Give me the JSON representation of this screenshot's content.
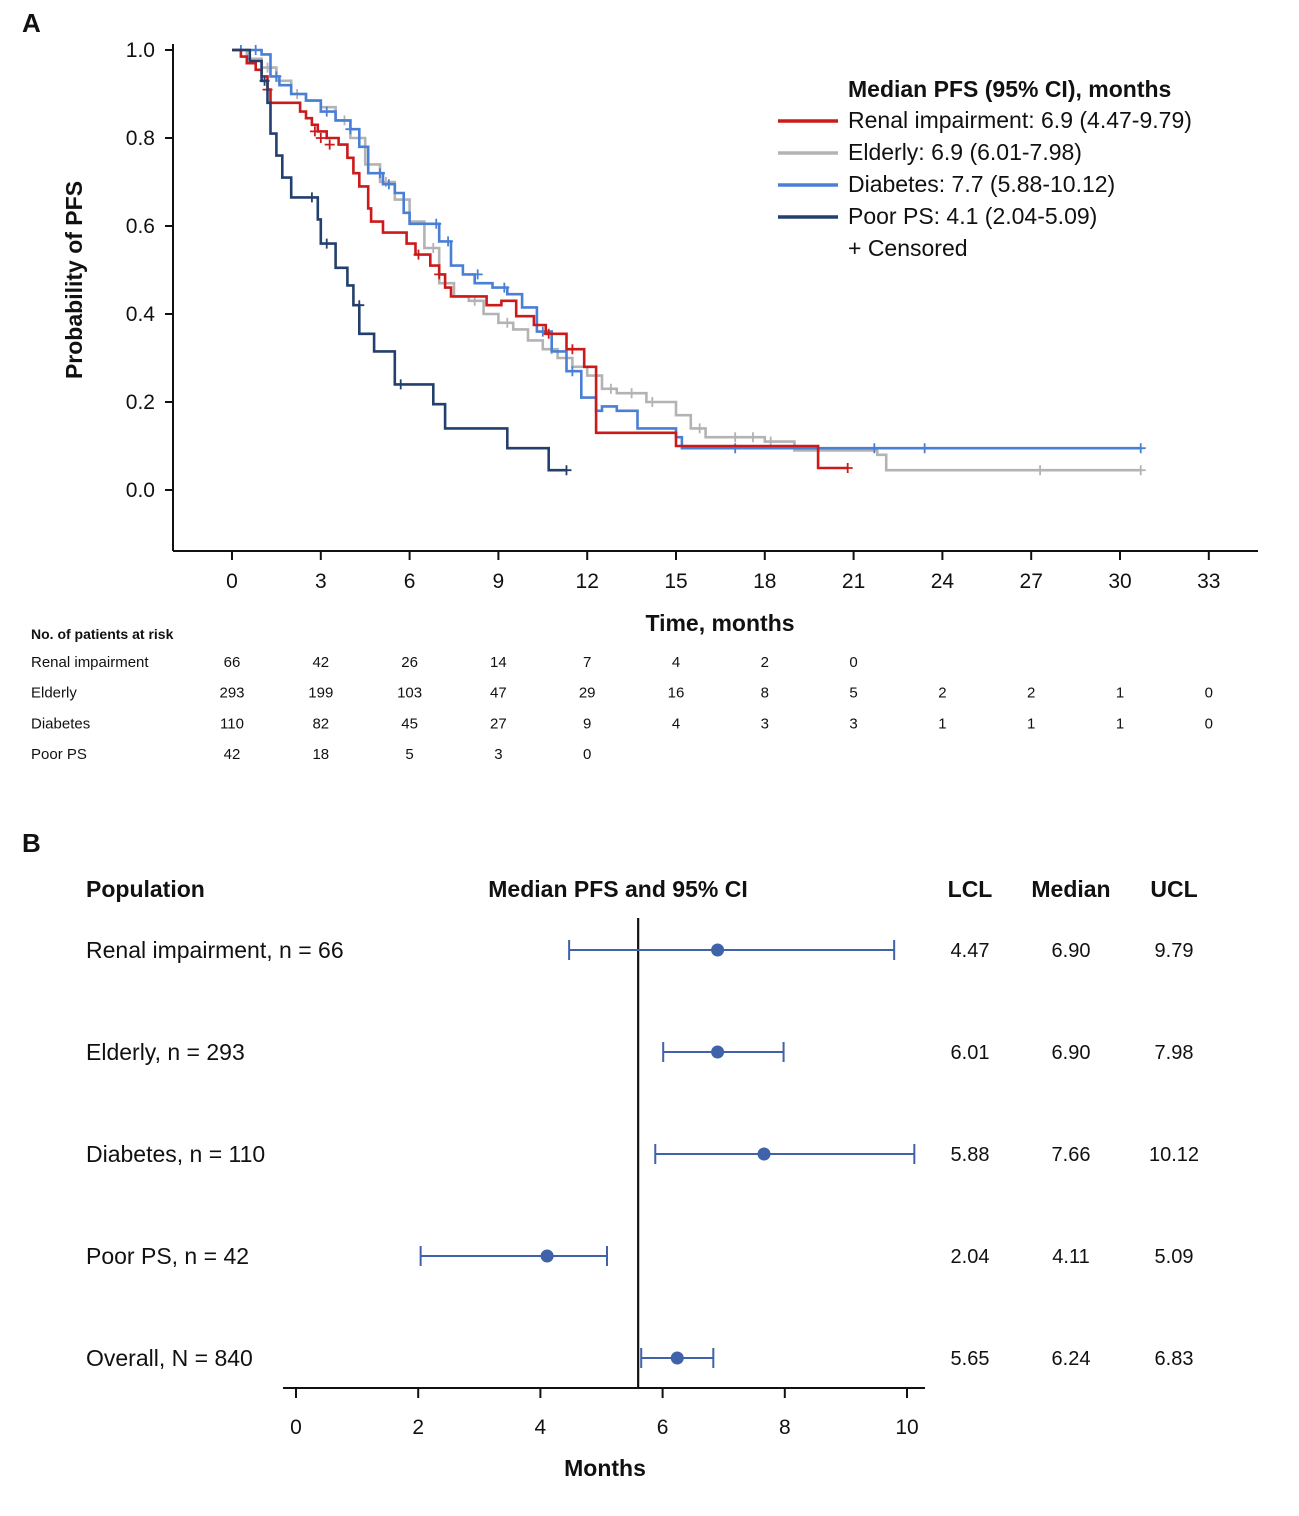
{
  "colors": {
    "renal": "#cc1a1a",
    "elderly": "#b3b3b3",
    "diabetes": "#4a7fd6",
    "poor_ps": "#233f6e",
    "forest": "#3f62a8",
    "axis": "#111111"
  },
  "panel_a": {
    "label": "A",
    "legend": {
      "title": "Median PFS (95% CI), months",
      "entries": [
        {
          "key": "renal",
          "text": "Renal impairment: 6.9 (4.47-9.79)"
        },
        {
          "key": "elderly",
          "text": "Elderly: 6.9 (6.01-7.98)"
        },
        {
          "key": "diabetes",
          "text": "Diabetes: 7.7 (5.88-10.12)"
        },
        {
          "key": "poor_ps",
          "text": "Poor PS: 4.1 (2.04-5.09)"
        }
      ],
      "censored_text": "+ Censored"
    },
    "risk_table": {
      "title": "No. of patients at risk",
      "rows": [
        {
          "label": "Renal impairment",
          "values": [
            "66",
            "42",
            "26",
            "14",
            "7",
            "4",
            "2",
            "0"
          ]
        },
        {
          "label": "Elderly",
          "values": [
            "293",
            "199",
            "103",
            "47",
            "29",
            "16",
            "8",
            "5",
            "2",
            "2",
            "1",
            "0"
          ]
        },
        {
          "label": "Diabetes",
          "values": [
            "110",
            "82",
            "45",
            "27",
            "9",
            "4",
            "3",
            "3",
            "1",
            "1",
            "1",
            "0"
          ]
        },
        {
          "label": "Poor PS",
          "values": [
            "42",
            "18",
            "5",
            "3",
            "0"
          ]
        }
      ]
    }
  },
  "panel_b": {
    "label": "B",
    "headers": {
      "population": "Population",
      "plot": "Median PFS and 95% CI",
      "lcl": "LCL",
      "median": "Median",
      "ucl": "UCL"
    }
  },
  "chart_data": [
    {
      "type": "line",
      "subtype": "kaplan-meier",
      "title": "",
      "xlabel": "Time, months",
      "ylabel": "Probability of PFS",
      "xlim": [
        -2,
        34
      ],
      "ylim": [
        -0.14,
        1.02
      ],
      "xticks": [
        0,
        3,
        6,
        9,
        12,
        15,
        18,
        21,
        24,
        27,
        30,
        33
      ],
      "yticks": [
        0.0,
        0.2,
        0.4,
        0.6,
        0.8,
        1.0
      ],
      "ytick_labels": [
        "0.0",
        "0.2",
        "0.4",
        "0.6",
        "0.8",
        "1.0"
      ],
      "series": [
        {
          "name": "Renal impairment",
          "color_key": "renal",
          "steps": [
            [
              0,
              1.0
            ],
            [
              0.3,
              0.985
            ],
            [
              0.5,
              0.97
            ],
            [
              0.8,
              0.955
            ],
            [
              1.0,
              0.94
            ],
            [
              1.2,
              0.91
            ],
            [
              1.3,
              0.88
            ],
            [
              2.3,
              0.86
            ],
            [
              2.5,
              0.845
            ],
            [
              2.7,
              0.83
            ],
            [
              2.9,
              0.815
            ],
            [
              3.2,
              0.8
            ],
            [
              3.6,
              0.785
            ],
            [
              3.9,
              0.755
            ],
            [
              4.1,
              0.72
            ],
            [
              4.3,
              0.69
            ],
            [
              4.6,
              0.64
            ],
            [
              4.7,
              0.61
            ],
            [
              5.1,
              0.585
            ],
            [
              5.9,
              0.56
            ],
            [
              6.2,
              0.535
            ],
            [
              6.7,
              0.51
            ],
            [
              7.0,
              0.49
            ],
            [
              7.2,
              0.46
            ],
            [
              7.4,
              0.44
            ],
            [
              8.6,
              0.42
            ],
            [
              9.1,
              0.43
            ],
            [
              9.6,
              0.395
            ],
            [
              10.2,
              0.375
            ],
            [
              10.6,
              0.355
            ],
            [
              11.3,
              0.32
            ],
            [
              11.9,
              0.28
            ],
            [
              12.3,
              0.13
            ],
            [
              15.0,
              0.1
            ],
            [
              19.8,
              0.05
            ],
            [
              20.8,
              0.05
            ]
          ],
          "censor": [
            [
              1.2,
              0.91
            ],
            [
              2.8,
              0.815
            ],
            [
              3.0,
              0.8
            ],
            [
              3.3,
              0.785
            ],
            [
              6.3,
              0.535
            ],
            [
              7.0,
              0.49
            ],
            [
              10.7,
              0.355
            ],
            [
              11.5,
              0.32
            ],
            [
              20.8,
              0.05
            ]
          ]
        },
        {
          "name": "Elderly",
          "color_key": "elderly",
          "steps": [
            [
              0,
              1.0
            ],
            [
              0.5,
              0.98
            ],
            [
              1.0,
              0.96
            ],
            [
              1.5,
              0.93
            ],
            [
              2.0,
              0.9
            ],
            [
              2.5,
              0.885
            ],
            [
              3.0,
              0.87
            ],
            [
              3.5,
              0.84
            ],
            [
              4.0,
              0.8
            ],
            [
              4.5,
              0.74
            ],
            [
              5.0,
              0.7
            ],
            [
              5.5,
              0.66
            ],
            [
              6.0,
              0.61
            ],
            [
              6.5,
              0.55
            ],
            [
              7.0,
              0.47
            ],
            [
              7.5,
              0.44
            ],
            [
              8.0,
              0.43
            ],
            [
              8.5,
              0.4
            ],
            [
              9.0,
              0.38
            ],
            [
              9.5,
              0.365
            ],
            [
              10.0,
              0.34
            ],
            [
              10.5,
              0.32
            ],
            [
              11.0,
              0.3
            ],
            [
              11.5,
              0.28
            ],
            [
              12.0,
              0.26
            ],
            [
              12.5,
              0.23
            ],
            [
              13.0,
              0.22
            ],
            [
              14.0,
              0.2
            ],
            [
              15.0,
              0.17
            ],
            [
              15.5,
              0.14
            ],
            [
              16.0,
              0.12
            ],
            [
              18.0,
              0.11
            ],
            [
              19.0,
              0.09
            ],
            [
              21.8,
              0.08
            ],
            [
              22.1,
              0.045
            ],
            [
              30.7,
              0.045
            ]
          ],
          "censor": [
            [
              1.2,
              0.96
            ],
            [
              2.2,
              0.9
            ],
            [
              3.8,
              0.84
            ],
            [
              5.2,
              0.7
            ],
            [
              6.8,
              0.55
            ],
            [
              8.2,
              0.43
            ],
            [
              9.3,
              0.38
            ],
            [
              10.8,
              0.32
            ],
            [
              12.8,
              0.23
            ],
            [
              13.5,
              0.22
            ],
            [
              14.2,
              0.2
            ],
            [
              15.8,
              0.14
            ],
            [
              17.0,
              0.12
            ],
            [
              17.6,
              0.12
            ],
            [
              18.2,
              0.11
            ],
            [
              27.3,
              0.045
            ],
            [
              30.7,
              0.045
            ]
          ]
        },
        {
          "name": "Diabetes",
          "color_key": "diabetes",
          "steps": [
            [
              0,
              1.0
            ],
            [
              1.0,
              0.99
            ],
            [
              1.3,
              0.94
            ],
            [
              1.6,
              0.92
            ],
            [
              2.0,
              0.9
            ],
            [
              2.5,
              0.885
            ],
            [
              3.0,
              0.86
            ],
            [
              3.5,
              0.84
            ],
            [
              4.0,
              0.82
            ],
            [
              4.3,
              0.78
            ],
            [
              4.6,
              0.72
            ],
            [
              5.1,
              0.695
            ],
            [
              5.5,
              0.675
            ],
            [
              5.8,
              0.63
            ],
            [
              6.0,
              0.605
            ],
            [
              7.0,
              0.565
            ],
            [
              7.4,
              0.51
            ],
            [
              7.8,
              0.49
            ],
            [
              8.2,
              0.47
            ],
            [
              8.8,
              0.46
            ],
            [
              9.3,
              0.445
            ],
            [
              9.8,
              0.415
            ],
            [
              10.3,
              0.36
            ],
            [
              10.8,
              0.315
            ],
            [
              11.3,
              0.27
            ],
            [
              11.8,
              0.21
            ],
            [
              12.3,
              0.18
            ],
            [
              12.5,
              0.19
            ],
            [
              13.0,
              0.18
            ],
            [
              13.7,
              0.14
            ],
            [
              15.0,
              0.12
            ],
            [
              15.2,
              0.095
            ],
            [
              30.7,
              0.095
            ]
          ],
          "censor": [
            [
              0.3,
              1.0
            ],
            [
              0.8,
              1.0
            ],
            [
              1.5,
              0.94
            ],
            [
              3.2,
              0.86
            ],
            [
              4.0,
              0.82
            ],
            [
              5.0,
              0.72
            ],
            [
              5.3,
              0.695
            ],
            [
              6.9,
              0.605
            ],
            [
              7.3,
              0.565
            ],
            [
              8.3,
              0.49
            ],
            [
              9.2,
              0.46
            ],
            [
              10.5,
              0.36
            ],
            [
              11.5,
              0.27
            ],
            [
              17.0,
              0.095
            ],
            [
              21.7,
              0.095
            ],
            [
              23.4,
              0.095
            ],
            [
              30.7,
              0.095
            ]
          ]
        },
        {
          "name": "Poor PS",
          "color_key": "poor_ps",
          "steps": [
            [
              0,
              1.0
            ],
            [
              0.6,
              0.975
            ],
            [
              1.0,
              0.93
            ],
            [
              1.2,
              0.88
            ],
            [
              1.3,
              0.81
            ],
            [
              1.5,
              0.76
            ],
            [
              1.7,
              0.71
            ],
            [
              2.0,
              0.665
            ],
            [
              2.9,
              0.615
            ],
            [
              3.0,
              0.56
            ],
            [
              3.5,
              0.505
            ],
            [
              3.9,
              0.465
            ],
            [
              4.1,
              0.42
            ],
            [
              4.3,
              0.355
            ],
            [
              4.8,
              0.315
            ],
            [
              5.5,
              0.24
            ],
            [
              6.8,
              0.195
            ],
            [
              7.2,
              0.14
            ],
            [
              9.3,
              0.095
            ],
            [
              10.7,
              0.045
            ],
            [
              11.3,
              0.045
            ]
          ],
          "censor": [
            [
              1.1,
              0.93
            ],
            [
              2.7,
              0.665
            ],
            [
              3.2,
              0.56
            ],
            [
              4.3,
              0.42
            ],
            [
              5.7,
              0.24
            ],
            [
              11.3,
              0.045
            ]
          ]
        }
      ]
    },
    {
      "type": "forest",
      "xlabel": "Months",
      "xlim": [
        -0.2,
        10.3
      ],
      "xticks": [
        0,
        2,
        4,
        6,
        8,
        10
      ],
      "reference_line": 5.6,
      "rows": [
        {
          "label": "Renal impairment, n = 66",
          "lcl": 4.47,
          "median": 6.9,
          "ucl": 9.79,
          "lcl_text": "4.47",
          "median_text": "6.90",
          "ucl_text": "9.79"
        },
        {
          "label": "Elderly, n = 293",
          "lcl": 6.01,
          "median": 6.9,
          "ucl": 7.98,
          "lcl_text": "6.01",
          "median_text": "6.90",
          "ucl_text": "7.98"
        },
        {
          "label": "Diabetes, n = 110",
          "lcl": 5.88,
          "median": 7.66,
          "ucl": 10.12,
          "lcl_text": "5.88",
          "median_text": "7.66",
          "ucl_text": "10.12"
        },
        {
          "label": "Poor PS, n = 42",
          "lcl": 2.04,
          "median": 4.11,
          "ucl": 5.09,
          "lcl_text": "2.04",
          "median_text": "4.11",
          "ucl_text": "5.09"
        },
        {
          "label": "Overall, N = 840",
          "lcl": 5.65,
          "median": 6.24,
          "ucl": 6.83,
          "lcl_text": "5.65",
          "median_text": "6.24",
          "ucl_text": "6.83"
        }
      ]
    }
  ]
}
